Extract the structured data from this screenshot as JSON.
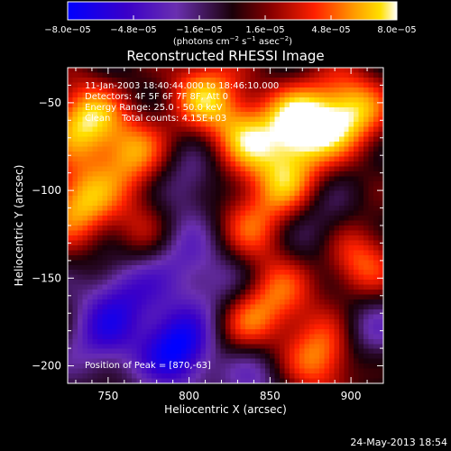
{
  "chart_data": {
    "type": "heatmap",
    "title": "Reconstructed RHESSI Image",
    "xlabel": "Heliocentric X (arcsec)",
    "ylabel": "Heliocentric Y (arcsec)",
    "xlim": [
      725,
      920
    ],
    "ylim": [
      -210,
      -30
    ],
    "x_ticks": [
      750,
      800,
      850,
      900
    ],
    "x_tick_labels": [
      "750",
      "800",
      "850",
      "900"
    ],
    "y_ticks": [
      -50,
      -100,
      -150,
      -200
    ],
    "y_tick_labels": [
      "−50",
      "−100",
      "−150",
      "−200"
    ],
    "colorbar": {
      "range": [
        -8e-05,
        8e-05
      ],
      "tick_values": [
        -8e-05,
        -4.8e-05,
        -1.6e-05,
        1.6e-05,
        4.8e-05,
        8e-05
      ],
      "tick_labels": [
        "−8.0e−05",
        "−4.8e−05",
        "−1.6e−05",
        "1.6e−05",
        "4.8e−05",
        "8.0e−05"
      ],
      "units_prefix": "(photons cm",
      "units_sup1": "−2",
      "units_mid": " s",
      "units_sup2": "−1",
      "units_mid2": " asec",
      "units_sup3": "−2",
      "units_suffix": ")",
      "colors": [
        "#0000ff",
        "#3a00c8",
        "#6a2fb0",
        "#2a0a1a",
        "#8a0000",
        "#ff2000",
        "#ff8a00",
        "#ffe000",
        "#ffffff"
      ]
    },
    "sources": [
      {
        "x": 735,
        "y": -60,
        "value": 7e-05
      },
      {
        "x": 732,
        "y": -108,
        "value": 6.5e-05
      },
      {
        "x": 765,
        "y": -80,
        "value": 5.5e-05
      },
      {
        "x": 810,
        "y": -45,
        "value": 6e-05
      },
      {
        "x": 835,
        "y": -70,
        "value": 5.5e-05
      },
      {
        "x": 860,
        "y": -95,
        "value": 5e-05
      },
      {
        "x": 870,
        "y": -63,
        "value": 8e-05
      },
      {
        "x": 900,
        "y": -55,
        "value": 7e-05
      },
      {
        "x": 905,
        "y": -140,
        "value": 5e-05
      },
      {
        "x": 882,
        "y": -195,
        "value": 6e-05
      },
      {
        "x": 855,
        "y": -160,
        "value": 4e-05
      },
      {
        "x": 833,
        "y": -175,
        "value": 4.5e-05
      },
      {
        "x": 775,
        "y": -125,
        "value": 3.5e-05
      },
      {
        "x": 838,
        "y": -120,
        "value": 4e-05
      },
      {
        "x": 793,
        "y": -190,
        "value": -8e-05
      },
      {
        "x": 760,
        "y": -160,
        "value": -4.5e-05
      },
      {
        "x": 790,
        "y": -135,
        "value": -4e-05
      },
      {
        "x": 745,
        "y": -185,
        "value": -4e-05
      },
      {
        "x": 820,
        "y": -155,
        "value": -3.5e-05
      },
      {
        "x": 800,
        "y": -95,
        "value": -3e-05
      },
      {
        "x": 880,
        "y": -120,
        "value": -2.5e-05
      },
      {
        "x": 840,
        "y": -205,
        "value": -3e-05
      },
      {
        "x": 910,
        "y": -180,
        "value": -3e-05
      }
    ],
    "peak": {
      "x": 870,
      "y": -63
    }
  },
  "annotations": {
    "line1": "11-Jan-2003 18:40:44.000 to 18:46:10.000",
    "line2": "Detectors: 4F 5F 6F 7F 8F, Att 0",
    "line3": "Energy Range: 25.0 - 50.0 keV",
    "line4": "Clean    Total counts: 4.15E+03",
    "peak_label": "Position of Peak = [870,-63]"
  },
  "footer": {
    "date": "24-May-2013 18:54"
  }
}
